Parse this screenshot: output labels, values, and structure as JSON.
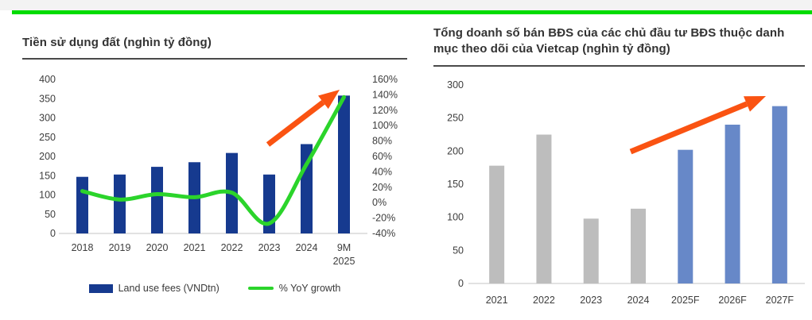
{
  "page": {
    "accent_bar_color": "#00dc00",
    "top_strip_color": "#f3f3f3",
    "background": "#ffffff"
  },
  "chart_data": [
    {
      "type": "bar",
      "title": "Tiền sử dụng đất (nghìn tỷ đồng)",
      "categories": [
        "2018",
        "2019",
        "2020",
        "2021",
        "2022",
        "2023",
        "2024",
        "9M\n2025"
      ],
      "series": [
        {
          "name": "Land use fees (VNDtn)",
          "kind": "bar",
          "axis": "left",
          "color": "#163a8f",
          "values": [
            147,
            153,
            173,
            185,
            209,
            153,
            232,
            358
          ]
        },
        {
          "name": "% YoY growth",
          "kind": "line",
          "axis": "right",
          "color": "#2bd42b",
          "values": [
            15,
            4,
            11,
            7,
            13,
            -27,
            50,
            137
          ]
        }
      ],
      "left_axis": {
        "min": 0,
        "max": 400,
        "step": 50,
        "ticks": [
          "0",
          "50",
          "100",
          "150",
          "200",
          "250",
          "300",
          "350",
          "400"
        ]
      },
      "right_axis": {
        "min": -40,
        "max": 160,
        "step": 20,
        "ticks": [
          "-40%",
          "-20%",
          "0%",
          "20%",
          "40%",
          "60%",
          "80%",
          "100%",
          "120%",
          "140%",
          "160%"
        ]
      },
      "legend": [
        "Land use fees (VNDtn)",
        "% YoY growth"
      ],
      "grid": false,
      "legend_position": "bottom",
      "annotations": [
        {
          "type": "up-trend-arrow",
          "color": "#fa5312"
        }
      ]
    },
    {
      "type": "bar",
      "title": "Tổng doanh số bán BĐS của các chủ đầu tư BĐS thuộc danh mục theo dõi của Vietcap (nghìn tỷ đồng)",
      "categories": [
        "2021",
        "2022",
        "2023",
        "2024",
        "2025F",
        "2026F",
        "2027F"
      ],
      "values": [
        178,
        225,
        98,
        113,
        202,
        240,
        268
      ],
      "bar_colors": [
        "#bdbdbd",
        "#bdbdbd",
        "#bdbdbd",
        "#bdbdbd",
        "#6788c8",
        "#6788c8",
        "#6788c8"
      ],
      "y_axis": {
        "min": 0,
        "max": 300,
        "step": 50,
        "ticks": [
          "0",
          "50",
          "100",
          "150",
          "200",
          "250",
          "300"
        ]
      },
      "grid": false,
      "annotations": [
        {
          "type": "up-trend-arrow",
          "color": "#fa5312"
        }
      ]
    }
  ]
}
